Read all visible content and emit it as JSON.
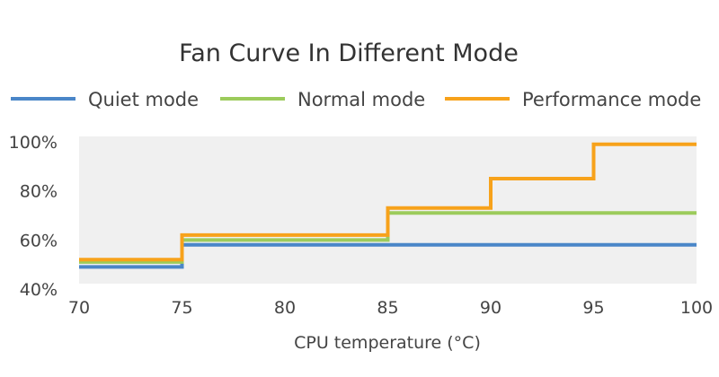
{
  "chart_data": {
    "type": "line",
    "step": true,
    "title": "Fan Curve In Different Mode",
    "xlabel": "CPU temperature (°C)",
    "ylabel": "",
    "xlim": [
      70,
      100
    ],
    "ylim": [
      40,
      100
    ],
    "x_ticks": [
      "70",
      "75",
      "80",
      "85",
      "90",
      "95",
      "100"
    ],
    "y_ticks": [
      "40%",
      "60%",
      "80%",
      "100%"
    ],
    "legend_position": "top",
    "grid": false,
    "series": [
      {
        "name": "Quiet mode",
        "color": "#4a86c8",
        "points": [
          [
            70,
            49
          ],
          [
            75,
            49
          ],
          [
            75,
            58
          ],
          [
            100,
            58
          ]
        ]
      },
      {
        "name": "Normal mode",
        "color": "#9ccb5b",
        "points": [
          [
            70,
            51
          ],
          [
            75,
            51
          ],
          [
            75,
            60
          ],
          [
            85,
            60
          ],
          [
            85,
            71
          ],
          [
            100,
            71
          ]
        ]
      },
      {
        "name": "Performance mode",
        "color": "#f7a21b",
        "points": [
          [
            70,
            52
          ],
          [
            75,
            52
          ],
          [
            75,
            62
          ],
          [
            85,
            62
          ],
          [
            85,
            73
          ],
          [
            90,
            73
          ],
          [
            90,
            85
          ],
          [
            95,
            85
          ],
          [
            95,
            99
          ],
          [
            100,
            99
          ]
        ]
      }
    ]
  },
  "colors": {
    "plot_background": "#f0f0f0"
  }
}
